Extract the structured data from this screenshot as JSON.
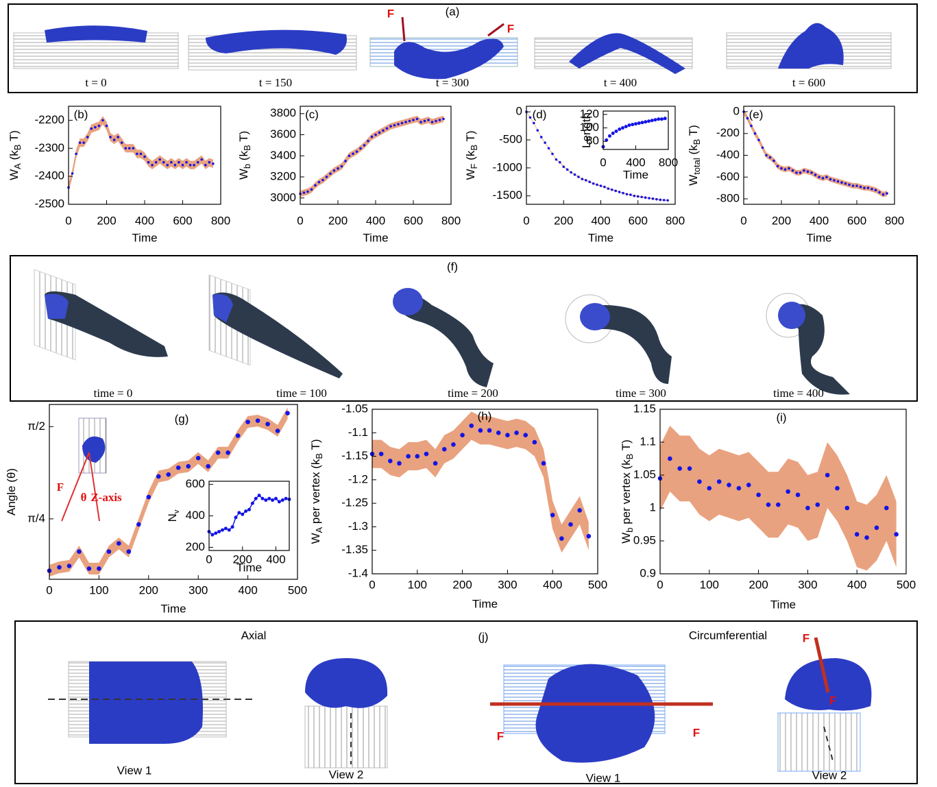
{
  "figure": {
    "panel_a": {
      "label": "(a)",
      "force_labels": [
        "F",
        "F"
      ],
      "captions": [
        "t = 0",
        "t = 150",
        "t = 300",
        "t = 400",
        "t = 600"
      ]
    },
    "panel_f": {
      "label": "(f)",
      "captions": [
        "time = 0",
        "time = 100",
        "time = 200",
        "time = 300",
        "time = 400"
      ]
    },
    "panel_j": {
      "label": "(j)",
      "headings": [
        "Axial",
        "Circumferential"
      ],
      "views": [
        "View 1",
        "View 2",
        "View 1",
        "View 2"
      ],
      "force_labels": [
        "F",
        "F",
        "F",
        "F"
      ]
    }
  },
  "chart_data": [
    {
      "type": "scatter",
      "label": "(b)",
      "xlabel": "Time",
      "ylabel": [
        "W",
        "A",
        " (k",
        "B",
        " T)"
      ],
      "xlim": [
        0,
        800
      ],
      "xticks": [
        0,
        200,
        400,
        600,
        800
      ],
      "ylim": [
        -2500,
        -2150
      ],
      "yticks": [
        -2500,
        -2400,
        -2300,
        -2200
      ],
      "color": "#1414e6",
      "band_color": "#e9a27f",
      "error": 15,
      "x": [
        0,
        20,
        40,
        60,
        80,
        100,
        120,
        140,
        160,
        180,
        200,
        220,
        240,
        260,
        280,
        300,
        320,
        340,
        360,
        380,
        400,
        420,
        440,
        460,
        480,
        500,
        520,
        540,
        560,
        580,
        600,
        620,
        640,
        660,
        680,
        700,
        720,
        740,
        760
      ],
      "values": [
        -2440,
        -2390,
        -2320,
        -2280,
        -2280,
        -2260,
        -2230,
        -2225,
        -2220,
        -2200,
        -2220,
        -2260,
        -2270,
        -2260,
        -2280,
        -2300,
        -2300,
        -2300,
        -2320,
        -2320,
        -2330,
        -2350,
        -2360,
        -2350,
        -2340,
        -2350,
        -2360,
        -2350,
        -2360,
        -2350,
        -2360,
        -2350,
        -2360,
        -2360,
        -2350,
        -2340,
        -2360,
        -2350,
        -2355
      ]
    },
    {
      "type": "scatter",
      "label": "(c)",
      "xlabel": "Time",
      "ylabel": [
        "W",
        "b",
        " (k",
        "B",
        " T)"
      ],
      "xlim": [
        0,
        800
      ],
      "xticks": [
        0,
        200,
        400,
        600,
        800
      ],
      "ylim": [
        2940,
        3870
      ],
      "yticks": [
        3000,
        3200,
        3400,
        3600,
        3800
      ],
      "color": "#1414e6",
      "band_color": "#e9a27f",
      "error": 30,
      "x": [
        0,
        20,
        40,
        60,
        80,
        100,
        120,
        140,
        160,
        180,
        200,
        220,
        240,
        260,
        280,
        300,
        320,
        340,
        360,
        380,
        400,
        420,
        440,
        460,
        480,
        500,
        520,
        540,
        560,
        580,
        600,
        620,
        640,
        660,
        680,
        700,
        720,
        740,
        760
      ],
      "values": [
        3040,
        3050,
        3060,
        3080,
        3120,
        3150,
        3170,
        3200,
        3230,
        3260,
        3280,
        3300,
        3350,
        3400,
        3420,
        3440,
        3470,
        3500,
        3540,
        3580,
        3600,
        3620,
        3640,
        3660,
        3680,
        3690,
        3700,
        3710,
        3720,
        3730,
        3740,
        3750,
        3720,
        3730,
        3740,
        3720,
        3730,
        3740,
        3750
      ]
    },
    {
      "type": "scatter",
      "label": "(d)",
      "xlabel": "Time",
      "ylabel": [
        "W",
        "F",
        " (k",
        "B",
        " T)"
      ],
      "xlim": [
        0,
        800
      ],
      "xticks": [
        0,
        200,
        400,
        600,
        800
      ],
      "ylim": [
        -1650,
        100
      ],
      "yticks": [
        -1500,
        -1000,
        -500,
        0
      ],
      "color": "#1414e6",
      "band_color": "#e9a27f",
      "error": 10,
      "x": [
        0,
        20,
        40,
        60,
        80,
        100,
        120,
        140,
        160,
        180,
        200,
        220,
        240,
        260,
        280,
        300,
        320,
        340,
        360,
        380,
        400,
        420,
        440,
        460,
        480,
        500,
        520,
        540,
        560,
        580,
        600,
        620,
        640,
        660,
        680,
        700,
        720,
        740,
        760
      ],
      "values": [
        0,
        -100,
        -200,
        -330,
        -450,
        -550,
        -650,
        -750,
        -850,
        -900,
        -980,
        -1030,
        -1080,
        -1120,
        -1160,
        -1200,
        -1220,
        -1250,
        -1280,
        -1300,
        -1320,
        -1340,
        -1370,
        -1390,
        -1410,
        -1430,
        -1450,
        -1470,
        -1480,
        -1500,
        -1510,
        -1520,
        -1530,
        -1540,
        -1550,
        -1560,
        -1570,
        -1575,
        -1580
      ],
      "inset": {
        "type": "scatter",
        "xlabel": "Time",
        "ylabel": [
          "Length"
        ],
        "xlim": [
          0,
          800
        ],
        "xticks": [
          0,
          400,
          800
        ],
        "ylim": [
          68,
          125
        ],
        "yticks": [
          80,
          100,
          120
        ],
        "color": "#1414e6",
        "x": [
          0,
          40,
          80,
          120,
          160,
          200,
          240,
          280,
          320,
          360,
          400,
          440,
          480,
          520,
          560,
          600,
          640,
          680,
          720,
          760
        ],
        "values": [
          72,
          82,
          88,
          92,
          95,
          98,
          100,
          102,
          104,
          105,
          106,
          107,
          108,
          109,
          110,
          111,
          112,
          113,
          113,
          114
        ]
      }
    },
    {
      "type": "scatter",
      "label": "(e)",
      "xlabel": "Time",
      "ylabel": [
        "W",
        "total",
        " (k",
        "B",
        " T)"
      ],
      "xlim": [
        0,
        800
      ],
      "xticks": [
        0,
        200,
        400,
        600,
        800
      ],
      "ylim": [
        -850,
        50
      ],
      "yticks": [
        -800,
        -600,
        -400,
        -200,
        0
      ],
      "color": "#1414e6",
      "band_color": "#e9a27f",
      "error": 25,
      "x": [
        0,
        20,
        40,
        60,
        80,
        100,
        120,
        140,
        160,
        180,
        200,
        220,
        240,
        260,
        280,
        300,
        320,
        340,
        360,
        380,
        400,
        420,
        440,
        460,
        480,
        500,
        520,
        540,
        560,
        580,
        600,
        620,
        640,
        660,
        680,
        700,
        720,
        740,
        760
      ],
      "values": [
        0,
        -60,
        -130,
        -200,
        -260,
        -330,
        -400,
        -420,
        -450,
        -500,
        -520,
        -530,
        -520,
        -540,
        -560,
        -560,
        -540,
        -550,
        -560,
        -580,
        -600,
        -610,
        -600,
        -620,
        -630,
        -640,
        -650,
        -660,
        -670,
        -680,
        -680,
        -690,
        -700,
        -700,
        -710,
        -720,
        -740,
        -760,
        -750
      ]
    },
    {
      "type": "scatter",
      "label": "(g)",
      "xlabel": "Time",
      "ylabel": [
        "Angle (θ)"
      ],
      "xlim": [
        0,
        500
      ],
      "xticks": [
        0,
        100,
        200,
        300,
        400,
        500
      ],
      "ylim": [
        0.27,
        1.76
      ],
      "yticks": [
        {
          "value": 0.785,
          "label": "π/4"
        },
        {
          "value": 1.571,
          "label": "π/2"
        }
      ],
      "color": "#1414e6",
      "band_color": "#e9a27f",
      "error": 0.05,
      "annotations": [
        "F",
        "θ",
        "Z-axis"
      ],
      "x": [
        0,
        20,
        40,
        60,
        80,
        100,
        120,
        140,
        160,
        180,
        200,
        220,
        240,
        260,
        280,
        300,
        320,
        340,
        360,
        380,
        400,
        420,
        440,
        460,
        480
      ],
      "values": [
        0.343,
        0.372,
        0.384,
        0.506,
        0.361,
        0.361,
        0.506,
        0.576,
        0.506,
        0.738,
        0.971,
        1.146,
        1.163,
        1.221,
        1.233,
        1.303,
        1.233,
        1.349,
        1.349,
        1.494,
        1.611,
        1.622,
        1.593,
        1.535,
        1.686
      ],
      "inset": {
        "type": "scatter",
        "xlabel": "Time",
        "ylabel": [
          "N",
          "v"
        ],
        "xlim": [
          0,
          480
        ],
        "xticks": [
          0,
          200,
          400
        ],
        "ylim": [
          180,
          620
        ],
        "yticks": [
          200,
          400,
          600
        ],
        "color": "#1414e6",
        "line": true,
        "x": [
          0,
          20,
          40,
          60,
          80,
          100,
          120,
          140,
          160,
          180,
          200,
          220,
          240,
          260,
          280,
          300,
          320,
          340,
          360,
          380,
          400,
          420,
          440,
          460,
          480
        ],
        "values": [
          300,
          280,
          290,
          300,
          310,
          320,
          310,
          330,
          390,
          420,
          410,
          430,
          440,
          480,
          510,
          530,
          510,
          500,
          510,
          500,
          510,
          490,
          500,
          510,
          505
        ]
      }
    },
    {
      "type": "scatter",
      "label": "(h)",
      "xlabel": "Time",
      "ylabel": [
        "W",
        "A",
        " per vertex (k",
        "B",
        " T)"
      ],
      "xlim": [
        0,
        500
      ],
      "xticks": [
        0,
        100,
        200,
        300,
        400,
        500
      ],
      "ylim": [
        -1.4,
        -1.05
      ],
      "yticks": [
        -1.4,
        -1.35,
        -1.3,
        -1.25,
        -1.2,
        -1.15,
        -1.1,
        -1.05
      ],
      "color": "#1414e6",
      "band_color": "#e9a27f",
      "error": 0.03,
      "x": [
        0,
        20,
        40,
        60,
        80,
        100,
        120,
        140,
        160,
        180,
        200,
        220,
        240,
        260,
        280,
        300,
        320,
        340,
        360,
        380,
        400,
        420,
        440,
        460,
        480
      ],
      "values": [
        -1.145,
        -1.145,
        -1.16,
        -1.165,
        -1.15,
        -1.15,
        -1.145,
        -1.165,
        -1.135,
        -1.125,
        -1.105,
        -1.085,
        -1.095,
        -1.095,
        -1.1,
        -1.105,
        -1.1,
        -1.105,
        -1.12,
        -1.165,
        -1.275,
        -1.325,
        -1.295,
        -1.265,
        -1.32
      ]
    },
    {
      "type": "scatter",
      "label": "(i)",
      "xlabel": "Time",
      "ylabel": [
        "W",
        "b",
        " per vertex (k",
        "B",
        " T)"
      ],
      "xlim": [
        0,
        500
      ],
      "xticks": [
        0,
        100,
        200,
        300,
        400,
        500
      ],
      "ylim": [
        0.9,
        1.15
      ],
      "yticks": [
        0.9,
        0.95,
        1,
        1.05,
        1.1,
        1.15
      ],
      "color": "#1414e6",
      "band_color": "#e9a27f",
      "error": 0.05,
      "x": [
        0,
        20,
        40,
        60,
        80,
        100,
        120,
        140,
        160,
        180,
        200,
        220,
        240,
        260,
        280,
        300,
        320,
        340,
        360,
        380,
        400,
        420,
        440,
        460,
        480
      ],
      "values": [
        1.045,
        1.075,
        1.06,
        1.06,
        1.04,
        1.03,
        1.04,
        1.035,
        1.03,
        1.035,
        1.02,
        1.005,
        1.005,
        1.025,
        1.02,
        1.0,
        1.005,
        1.05,
        1.03,
        1.0,
        0.96,
        0.955,
        0.97,
        1.0,
        0.96
      ]
    }
  ]
}
